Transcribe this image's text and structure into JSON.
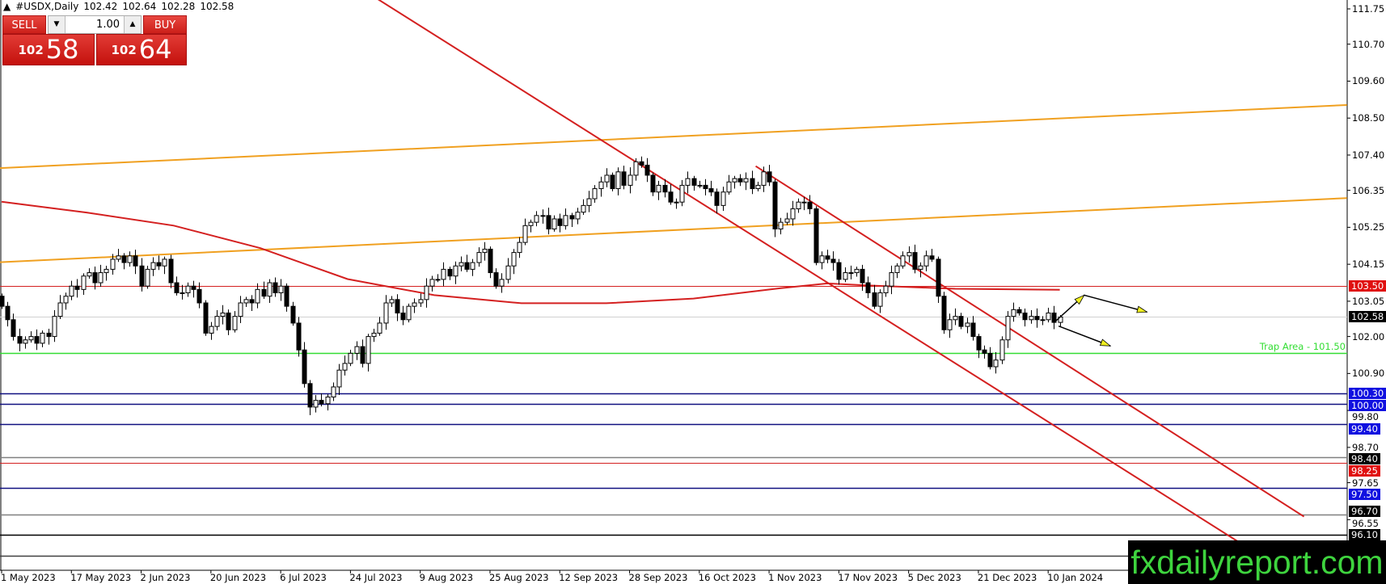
{
  "header": {
    "symbol": "#USDX,Daily",
    "open": "102.42",
    "high": "102.64",
    "low": "102.28",
    "close": "102.58",
    "collapse_icon": "triangle-up-icon"
  },
  "trade_panel": {
    "sell_label": "SELL",
    "buy_label": "BUY",
    "quantity": "1.00",
    "sell_price_big": "102",
    "sell_price_pips": "58",
    "buy_price_big": "102",
    "buy_price_pips": "64",
    "color": "#d9261f"
  },
  "watermark": "fxdailyreport.com",
  "chart_data": {
    "type": "candlestick",
    "symbol": "#USDX",
    "timeframe": "Daily",
    "x_ticks": [
      "1 May 2023",
      "17 May 2023",
      "2 Jun 2023",
      "20 Jun 2023",
      "6 Jul 2023",
      "24 Jul 2023",
      "9 Aug 2023",
      "25 Aug 2023",
      "12 Sep 2023",
      "28 Sep 2023",
      "16 Oct 2023",
      "1 Nov 2023",
      "17 Nov 2023",
      "5 Dec 2023",
      "21 Dec 2023",
      "10 Jan 2024"
    ],
    "y_ticks": [
      "111.75",
      "110.70",
      "109.60",
      "108.50",
      "107.40",
      "106.35",
      "105.25",
      "104.15",
      "103.05",
      "102.00",
      "100.90",
      "99.80",
      "98.70",
      "97.65",
      "96.55"
    ],
    "ylim": [
      95.0,
      112.0
    ],
    "grid": false,
    "close": [
      102.9,
      102.5,
      102.0,
      101.8,
      101.9,
      102.0,
      101.8,
      102.1,
      102.0,
      102.6,
      103.0,
      103.2,
      103.5,
      103.4,
      103.8,
      103.9,
      103.6,
      103.9,
      104.0,
      104.3,
      104.4,
      104.2,
      104.4,
      104.1,
      103.5,
      104.0,
      104.2,
      104.1,
      104.3,
      103.6,
      103.3,
      103.3,
      103.5,
      103.4,
      103.0,
      102.1,
      102.3,
      102.6,
      102.7,
      102.2,
      102.6,
      103.0,
      103.1,
      103.0,
      103.4,
      103.2,
      103.6,
      103.3,
      103.5,
      102.9,
      102.4,
      101.6,
      100.6,
      99.9,
      100.1,
      100.0,
      100.2,
      100.5,
      101.0,
      101.2,
      101.5,
      101.7,
      101.2,
      102.0,
      102.1,
      102.4,
      103.0,
      103.1,
      102.7,
      102.5,
      102.9,
      103.0,
      103.1,
      103.5,
      103.7,
      103.7,
      104.0,
      103.8,
      104.1,
      104.2,
      104.0,
      104.2,
      104.5,
      104.6,
      103.9,
      103.5,
      103.7,
      104.1,
      104.5,
      104.8,
      105.3,
      105.4,
      105.6,
      105.6,
      105.2,
      105.5,
      105.3,
      105.6,
      105.5,
      105.7,
      105.9,
      106.1,
      106.4,
      106.6,
      106.8,
      106.4,
      106.9,
      106.5,
      106.8,
      107.2,
      107.1,
      106.8,
      106.3,
      106.5,
      106.3,
      106.0,
      106.0,
      106.5,
      106.7,
      106.5,
      106.5,
      106.4,
      106.3,
      105.9,
      106.3,
      106.6,
      106.7,
      106.6,
      106.7,
      106.4,
      106.5,
      106.9,
      106.6,
      105.2,
      105.4,
      105.5,
      105.8,
      106.0,
      106.0,
      105.8,
      104.2,
      104.4,
      104.3,
      104.2,
      103.7,
      103.9,
      103.9,
      104.0,
      103.6,
      103.3,
      102.9,
      103.3,
      103.5,
      103.9,
      104.1,
      104.4,
      104.5,
      104.0,
      104.1,
      104.4,
      104.3,
      103.2,
      102.2,
      102.5,
      102.6,
      102.3,
      102.4,
      102.0,
      101.6,
      101.5,
      101.1,
      101.3,
      101.9,
      102.6,
      102.8,
      102.7,
      102.5,
      102.6,
      102.5,
      102.5,
      102.7,
      102.42,
      102.58
    ],
    "last_candle": {
      "open": 102.42,
      "high": 102.64,
      "low": 102.28,
      "close": 102.58
    },
    "moving_average": {
      "color": "#d42020",
      "points": [
        [
          0,
          106.01
        ],
        [
          14.6,
          105.69
        ],
        [
          29.6,
          105.3
        ],
        [
          44.5,
          104.63
        ],
        [
          59.5,
          103.71
        ],
        [
          74.4,
          103.23
        ],
        [
          89.4,
          102.99
        ],
        [
          104,
          102.99
        ],
        [
          119,
          103.13
        ],
        [
          134,
          103.44
        ],
        [
          142,
          103.58
        ],
        [
          149,
          103.52
        ],
        [
          164,
          103.42
        ],
        [
          182,
          103.39
        ]
      ]
    },
    "trend_lines": [
      {
        "color": "#f0a020",
        "from": [
          -0.3,
          107.01
        ],
        "to": [
          231.4,
          108.89
        ]
      },
      {
        "color": "#f0a020",
        "from": [
          -0.3,
          104.21
        ],
        "to": [
          231.4,
          106.12
        ]
      },
      {
        "color": "#d42020",
        "from": [
          64.7,
          112.04
        ],
        "to": [
          216.4,
          95.49
        ]
      },
      {
        "color": "#d42020",
        "from": [
          129.7,
          107.07
        ],
        "to": [
          224,
          96.64
        ]
      }
    ],
    "horizontal_lines": [
      {
        "price": 103.5,
        "label": "103.50",
        "color": "#d42020",
        "label_bg": "#e01010",
        "label_fg": "#ffffff"
      },
      {
        "price": 102.58,
        "label": "102.58",
        "color": "#d0d0d0",
        "label_bg": "#000000",
        "label_fg": "#ffffff"
      },
      {
        "price": 101.5,
        "label": "",
        "color": "#33dd33"
      },
      {
        "price": 100.3,
        "label": "100.30",
        "color": "#101080",
        "label_bg": "#1010e0",
        "label_fg": "#ffffff"
      },
      {
        "price": 100.0,
        "label": "100.00",
        "color": "#101080",
        "label_bg": "#1010e0",
        "label_fg": "#ffffff"
      },
      {
        "price": 99.4,
        "label": "99.40",
        "color": "#101080",
        "label_bg": "#1010e0",
        "label_fg": "#ffffff"
      },
      {
        "price": 98.4,
        "label": "98.40",
        "color": "#808080",
        "label_bg": "#000000",
        "label_fg": "#ffffff"
      },
      {
        "price": 98.25,
        "label": "98.25",
        "color": "#d42020",
        "label_bg": "#e01010",
        "label_fg": "#ffffff"
      },
      {
        "price": 97.5,
        "label": "97.50",
        "color": "#101080",
        "label_bg": "#1010e0",
        "label_fg": "#ffffff"
      },
      {
        "price": 96.7,
        "label": "96.70",
        "color": "#808080",
        "label_bg": "#000000",
        "label_fg": "#ffffff"
      },
      {
        "price": 96.1,
        "label": "96.10",
        "color": "#000000",
        "label_bg": "#000000",
        "label_fg": "#ffffff"
      },
      {
        "price": 95.48,
        "label": "",
        "color": "#404040"
      }
    ],
    "annotation": {
      "text": "Trap Area - 101.50",
      "price": 101.5,
      "color": "#33dd33"
    },
    "arrows": [
      {
        "points": [
          [
            181.3,
            102.46
          ],
          [
            186.2,
            103.23
          ],
          [
            197,
            102.73
          ]
        ],
        "line_color": "#000000",
        "head_color": "#f0f020"
      },
      {
        "points": [
          [
            181.8,
            102.31
          ],
          [
            190.7,
            101.72
          ]
        ],
        "line_color": "#000000",
        "head_color": "#f0f020"
      }
    ]
  }
}
